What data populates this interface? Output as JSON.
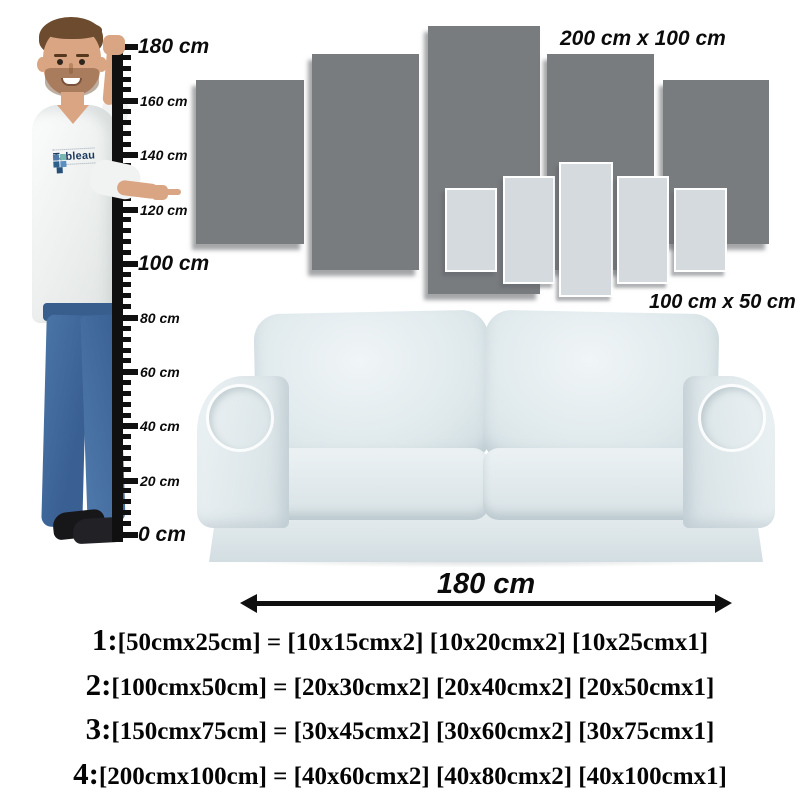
{
  "colors": {
    "ink": "#111111",
    "dark_panel": "#797c7f",
    "light_panel": "#d4dade",
    "sofa": "#e3eaed",
    "skin": "#d9a583",
    "hair": "#6d4b2f",
    "jeans": "#3e689a"
  },
  "ruler": {
    "unit": "cm",
    "labels": [
      {
        "text": "180 cm",
        "size": "large"
      },
      {
        "text": "160 cm",
        "size": "small"
      },
      {
        "text": "140 cm",
        "size": "small"
      },
      {
        "text": "120 cm",
        "size": "small"
      },
      {
        "text": "100 cm",
        "size": "large"
      },
      {
        "text": "80 cm",
        "size": "small"
      },
      {
        "text": "60 cm",
        "size": "small"
      },
      {
        "text": "40 cm",
        "size": "small"
      },
      {
        "text": "20 cm",
        "size": "small"
      },
      {
        "text": "0 cm",
        "size": "large"
      }
    ]
  },
  "model": {
    "shirt_logo": "Tableau"
  },
  "canvas_sets": {
    "large_label": "200 cm x 100 cm",
    "small_label": "100 cm x 50 cm"
  },
  "sofa": {
    "width_label": "180 cm"
  },
  "size_options": [
    {
      "num": "1:",
      "text": "[50cmx25cm] = [10x15cmx2] [10x20cmx2] [10x25cmx1]"
    },
    {
      "num": "2:",
      "text": "[100cmx50cm] = [20x30cmx2] [20x40cmx2] [20x50cmx1]"
    },
    {
      "num": "3:",
      "text": "[150cmx75cm] = [30x45cmx2] [30x60cmx2] [30x75cmx1]"
    },
    {
      "num": "4:",
      "text": "[200cmx100cm] = [40x60cmx2] [40x80cmx2] [40x100cmx1]"
    }
  ]
}
